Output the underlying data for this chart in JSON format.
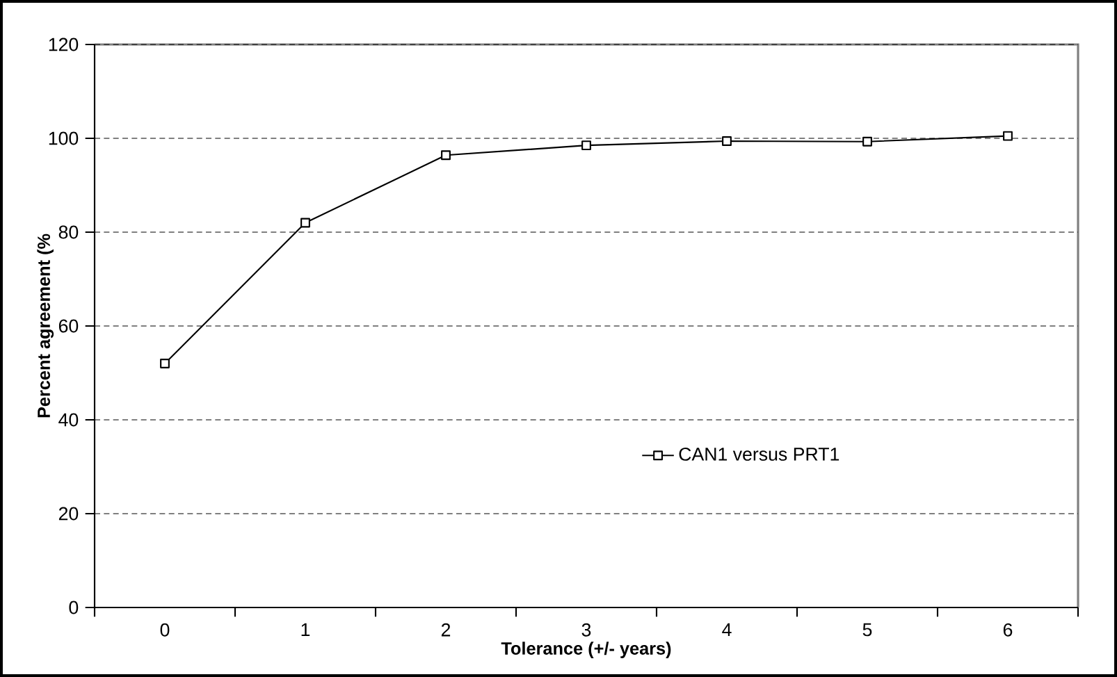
{
  "chart_data": {
    "type": "line",
    "xlabel": "Tolerance (+/- years)",
    "ylabel": "Percent agreement (%",
    "categories": [
      "0",
      "1",
      "2",
      "3",
      "4",
      "5",
      "6"
    ],
    "series": [
      {
        "name": "CAN1 versus PRT1",
        "color": "#000000",
        "values": [
          52,
          82,
          96.4,
          98.5,
          99.4,
          99.3,
          100.5
        ]
      }
    ],
    "ylim": [
      0,
      120
    ],
    "yticks": [
      0,
      20,
      40,
      60,
      80,
      100,
      120
    ],
    "grid": "y",
    "legend": "right",
    "marker": "square",
    "line_style": "solid"
  }
}
